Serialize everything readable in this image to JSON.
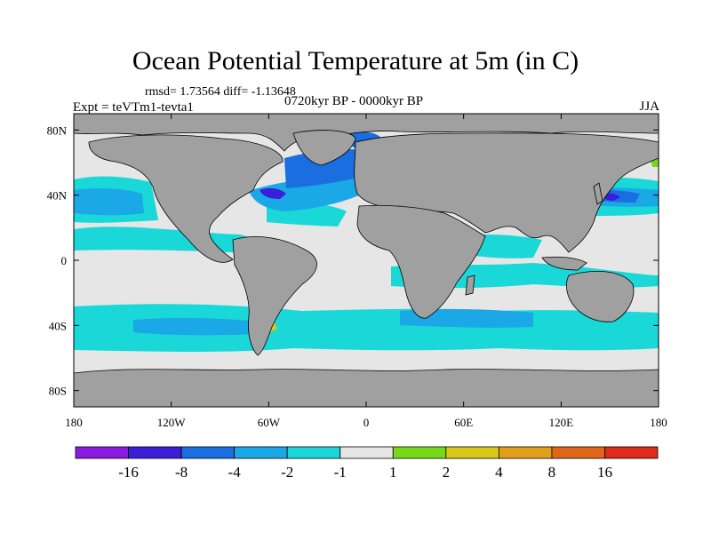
{
  "chart_data": {
    "type": "heatmap",
    "title": "Ocean Potential Temperature at 5m (in C)",
    "stats_text": "rmsd= 1.73564  diff= -1.13648",
    "period_text": "0720kyr BP - 0000kyr BP",
    "left_label": "Expt = teVTm1-tevta1",
    "right_label": "JJA",
    "x_ticks": [
      "180",
      "120W",
      "60W",
      "0",
      "60E",
      "120E",
      "180"
    ],
    "x_tick_values": [
      -180,
      -120,
      -60,
      0,
      60,
      120,
      180
    ],
    "y_ticks": [
      "80N",
      "40N",
      "0",
      "40S",
      "80S"
    ],
    "y_tick_values": [
      80,
      40,
      0,
      -40,
      -80
    ],
    "xlim": [
      -180,
      180
    ],
    "ylim": [
      -90,
      90
    ],
    "colorbar": {
      "labels": [
        "-16",
        "-8",
        "-4",
        "-2",
        "-1",
        "1",
        "2",
        "4",
        "8",
        "16"
      ],
      "colors": [
        "#8a1ae0",
        "#3b1ed8",
        "#1a6ee0",
        "#1aa8e6",
        "#1ad8d8",
        "#e6e6e6",
        "#7ad81a",
        "#d8c81a",
        "#e0a01a",
        "#e0661a",
        "#e02a1a"
      ]
    },
    "land_color": "#a0a0a0",
    "neutral_ocean_color": "#e6e6e6"
  }
}
